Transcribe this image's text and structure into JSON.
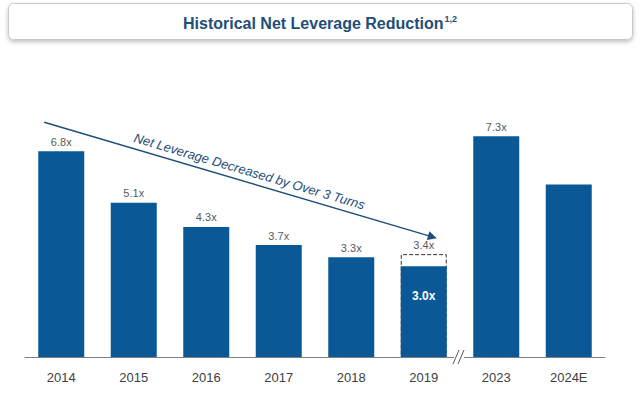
{
  "chart_data": {
    "type": "bar",
    "title": "Historical Net Leverage Reduction",
    "title_superscript": "1,2",
    "categories": [
      "2014",
      "2015",
      "2016",
      "2017",
      "2018",
      "2019",
      "2023",
      "2024E"
    ],
    "values": [
      6.8,
      5.1,
      4.3,
      3.7,
      3.3,
      3.0,
      7.3,
      5.7
    ],
    "value_labels": [
      "6.8x",
      "5.1x",
      "4.3x",
      "3.7x",
      "3.3x",
      "3.0x",
      "7.3x",
      null
    ],
    "color": "#0a5896",
    "pro_forma": {
      "category": "2019",
      "value": 3.4,
      "label": "3.4x"
    },
    "axis_break_after": "2019",
    "annotations": [
      {
        "text": "Net Leverage Decreased by Over 3 Turns",
        "from": "2014",
        "to": "2019"
      }
    ],
    "data_labels": true,
    "tick_labels": "x",
    "grid": false
  }
}
